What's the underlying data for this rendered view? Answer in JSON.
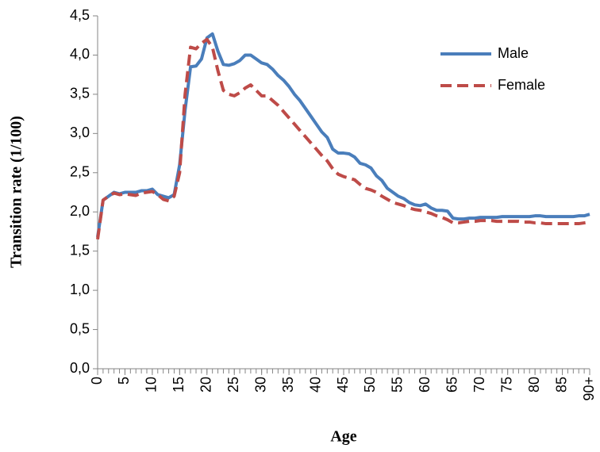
{
  "chart_data": {
    "type": "line",
    "x_label": "Age",
    "y_label": "Transition rate (1/100)",
    "x": [
      0,
      1,
      2,
      3,
      4,
      5,
      6,
      7,
      8,
      9,
      10,
      11,
      12,
      13,
      14,
      15,
      16,
      17,
      18,
      19,
      20,
      21,
      22,
      23,
      24,
      25,
      26,
      27,
      28,
      29,
      30,
      31,
      32,
      33,
      34,
      35,
      36,
      37,
      38,
      39,
      40,
      41,
      42,
      43,
      44,
      45,
      46,
      47,
      48,
      49,
      50,
      51,
      52,
      53,
      54,
      55,
      56,
      57,
      58,
      59,
      60,
      61,
      62,
      63,
      64,
      65,
      66,
      67,
      68,
      69,
      70,
      71,
      72,
      73,
      74,
      75,
      76,
      77,
      78,
      79,
      80,
      81,
      82,
      83,
      84,
      85,
      86,
      87,
      88,
      89,
      90
    ],
    "series": [
      {
        "name": "Male",
        "color": "#4a7ebb",
        "dash": false,
        "values": [
          1.68,
          2.15,
          2.2,
          2.25,
          2.23,
          2.25,
          2.25,
          2.25,
          2.27,
          2.27,
          2.29,
          2.22,
          2.2,
          2.18,
          2.22,
          2.6,
          3.3,
          3.85,
          3.86,
          3.95,
          4.22,
          4.27,
          4.05,
          3.88,
          3.87,
          3.89,
          3.93,
          4.0,
          4.0,
          3.95,
          3.9,
          3.88,
          3.82,
          3.74,
          3.68,
          3.6,
          3.5,
          3.42,
          3.32,
          3.22,
          3.12,
          3.02,
          2.95,
          2.8,
          2.75,
          2.75,
          2.74,
          2.7,
          2.62,
          2.6,
          2.56,
          2.46,
          2.4,
          2.3,
          2.25,
          2.2,
          2.17,
          2.12,
          2.09,
          2.08,
          2.1,
          2.05,
          2.02,
          2.02,
          2.01,
          1.92,
          1.91,
          1.91,
          1.92,
          1.92,
          1.93,
          1.93,
          1.93,
          1.93,
          1.94,
          1.94,
          1.94,
          1.94,
          1.94,
          1.94,
          1.95,
          1.95,
          1.94,
          1.94,
          1.94,
          1.94,
          1.94,
          1.94,
          1.95,
          1.95,
          1.97
        ]
      },
      {
        "name": "Female",
        "color": "#be4b48",
        "dash": true,
        "values": [
          1.65,
          2.15,
          2.2,
          2.24,
          2.22,
          2.23,
          2.22,
          2.21,
          2.24,
          2.25,
          2.26,
          2.22,
          2.16,
          2.14,
          2.2,
          2.5,
          3.5,
          4.1,
          4.08,
          4.15,
          4.2,
          4.1,
          3.8,
          3.55,
          3.5,
          3.48,
          3.52,
          3.58,
          3.62,
          3.55,
          3.48,
          3.48,
          3.42,
          3.36,
          3.28,
          3.2,
          3.12,
          3.04,
          2.96,
          2.88,
          2.8,
          2.72,
          2.65,
          2.55,
          2.48,
          2.45,
          2.43,
          2.41,
          2.35,
          2.3,
          2.28,
          2.25,
          2.2,
          2.16,
          2.12,
          2.1,
          2.08,
          2.05,
          2.03,
          2.02,
          2.0,
          1.98,
          1.95,
          1.93,
          1.9,
          1.86,
          1.86,
          1.87,
          1.88,
          1.88,
          1.89,
          1.89,
          1.89,
          1.88,
          1.88,
          1.88,
          1.88,
          1.88,
          1.87,
          1.87,
          1.86,
          1.86,
          1.85,
          1.85,
          1.85,
          1.85,
          1.85,
          1.85,
          1.85,
          1.86,
          1.87
        ]
      }
    ],
    "xlim": [
      0,
      90
    ],
    "xticks": [
      0,
      5,
      10,
      15,
      20,
      25,
      30,
      35,
      40,
      45,
      50,
      55,
      60,
      65,
      70,
      75,
      80,
      85,
      {
        "value": 90,
        "label": "90+"
      }
    ],
    "ylim": [
      0,
      4.5
    ],
    "yticks": [
      {
        "value": 0,
        "label": "0,0"
      },
      {
        "value": 0.5,
        "label": "0,5"
      },
      {
        "value": 1,
        "label": "1,0"
      },
      {
        "value": 1.5,
        "label": "1,5"
      },
      {
        "value": 2,
        "label": "2,0"
      },
      {
        "value": 2.5,
        "label": "2,5"
      },
      {
        "value": 3,
        "label": "3,0"
      },
      {
        "value": 3.5,
        "label": "3,5"
      },
      {
        "value": 4,
        "label": "4,0"
      },
      {
        "value": 4.5,
        "label": "4,5"
      }
    ],
    "grid": false,
    "legend": "upper right"
  }
}
